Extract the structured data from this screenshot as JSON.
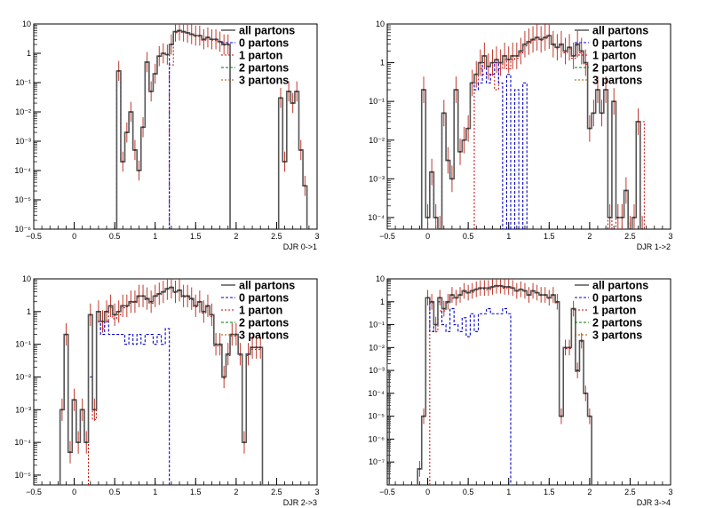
{
  "chart_data": [
    {
      "type": "line",
      "xlabel": "DJR 0->1",
      "ylabel": "",
      "title": "",
      "xlim": [
        -0.5,
        3
      ],
      "ylim_log10": [
        -6,
        1
      ],
      "yscale": "log",
      "x_ticks": [
        "−0.5",
        "0",
        "0.5",
        "1",
        "1.5",
        "2",
        "2.5",
        "3"
      ],
      "y_ticks": [
        "10",
        "1",
        "10⁻¹",
        "10⁻²",
        "10⁻³",
        "10⁻⁴",
        "10⁻⁵",
        "10⁻⁶"
      ],
      "legend": [
        "all partons",
        "0 partons",
        "1 parton",
        "2 partons",
        "3 partons"
      ],
      "bin_width": 0.05,
      "series": [
        {
          "name": "all partons",
          "color": "#555555",
          "x": [
            0.55,
            0.6,
            0.65,
            0.7,
            0.75,
            0.8,
            0.85,
            0.9,
            0.95,
            1.0,
            1.05,
            1.1,
            1.15,
            1.2,
            1.25,
            1.3,
            1.35,
            1.4,
            1.45,
            1.5,
            1.55,
            1.6,
            1.65,
            1.7,
            1.75,
            1.8,
            1.85,
            1.9,
            2.55,
            2.6,
            2.65,
            2.7,
            2.75,
            2.8,
            2.85
          ],
          "values": [
            0.25,
            0.0002,
            0.002,
            0.01,
            0.0005,
            0.0001,
            0.003,
            0.5,
            0.05,
            0.2,
            0.8,
            1.0,
            0.9,
            2.0,
            5.5,
            6.0,
            5.5,
            5.0,
            4.5,
            4.0,
            4.0,
            3.0,
            3.5,
            3.0,
            3.0,
            2.5,
            2.0,
            2.0,
            0.03,
            0.0002,
            0.05,
            0.02,
            0.05,
            0.0005,
            3e-05
          ]
        },
        {
          "name": "0 partons",
          "color": "#0000cc",
          "x": [
            0.55,
            0.6,
            0.65,
            0.7,
            0.75,
            0.8,
            0.85,
            0.9,
            0.95,
            1.0,
            1.05,
            1.1,
            1.15
          ],
          "values": [
            0.25,
            0.0002,
            0.002,
            0.01,
            0.0005,
            0.0001,
            0.003,
            0.5,
            0.05,
            0.2,
            0.8,
            1.0,
            0.9
          ]
        },
        {
          "name": "1 parton",
          "color": "#cc0000",
          "x": [
            1.2,
            1.25,
            1.3,
            1.35,
            1.4,
            1.45,
            1.5,
            1.55,
            1.6,
            1.65,
            1.7,
            1.75,
            1.8,
            1.85,
            1.9,
            2.55,
            2.6,
            2.65,
            2.7,
            2.75,
            2.8,
            2.85
          ],
          "values": [
            0.4,
            5.0,
            5.5,
            5.2,
            4.8,
            4.3,
            3.8,
            3.8,
            2.8,
            3.3,
            2.8,
            2.8,
            2.4,
            1.9,
            1.9,
            0.03,
            0.0002,
            0.05,
            0.02,
            0.05,
            0.0005,
            3e-05
          ]
        },
        {
          "name": "2 partons",
          "color": "#007700",
          "x": [],
          "values": []
        },
        {
          "name": "3 partons",
          "color": "#aa5500",
          "x": [],
          "values": []
        }
      ]
    },
    {
      "type": "line",
      "xlabel": "DJR 1->2",
      "ylabel": "",
      "title": "",
      "xlim": [
        -0.5,
        3
      ],
      "ylim_log10": [
        -4.3,
        1
      ],
      "yscale": "log",
      "x_ticks": [
        "−0.5",
        "0",
        "0.5",
        "1",
        "1.5",
        "2",
        "2.5",
        "3"
      ],
      "y_ticks": [
        "10",
        "1",
        "10⁻¹",
        "10⁻²",
        "10⁻³",
        "10⁻⁴"
      ],
      "legend": [
        "all partons",
        "0 partons",
        "1 parton",
        "2 partons",
        "3 partons"
      ],
      "bin_width": 0.05,
      "series": [
        {
          "name": "all partons",
          "color": "#555555",
          "x": [
            -0.05,
            0.0,
            0.05,
            0.1,
            0.15,
            0.2,
            0.25,
            0.3,
            0.35,
            0.4,
            0.45,
            0.5,
            0.55,
            0.6,
            0.65,
            0.7,
            0.75,
            0.8,
            0.85,
            0.9,
            0.95,
            1.0,
            1.05,
            1.1,
            1.15,
            1.2,
            1.25,
            1.3,
            1.35,
            1.4,
            1.45,
            1.5,
            1.55,
            1.6,
            1.65,
            1.7,
            1.75,
            1.8,
            1.85,
            1.9,
            1.95,
            2.0,
            2.05,
            2.1,
            2.15,
            2.2,
            2.25,
            2.3,
            2.35,
            2.4,
            2.45,
            2.5,
            2.55,
            2.6,
            2.65
          ],
          "values": [
            0.2,
            0.0001,
            0.0015,
            0.0001,
            5e-05,
            0.05,
            0.003,
            0.001,
            0.2,
            0.005,
            0.01,
            0.02,
            0.3,
            0.5,
            1.0,
            1.5,
            0.8,
            1.0,
            1.2,
            1.0,
            1.5,
            1.2,
            1.5,
            1.5,
            2.0,
            3.0,
            3.5,
            4.0,
            4.5,
            4.0,
            4.5,
            5.0,
            3.0,
            2.5,
            3.0,
            2.0,
            2.5,
            1.5,
            3.0,
            2.0,
            1.0,
            0.02,
            0.05,
            0.2,
            0.05,
            0.2,
            0.0001,
            0.1,
            0.0001,
            0.0001,
            0.0005,
            5e-05,
            0.0001,
            0.03,
            5e-05
          ]
        },
        {
          "name": "0 partons",
          "color": "#0000cc",
          "x": [
            -0.05,
            0.0,
            0.05,
            0.1,
            0.15,
            0.2,
            0.25,
            0.3,
            0.35,
            0.4,
            0.45,
            0.5,
            0.55,
            0.6,
            0.65,
            0.7,
            0.75,
            0.8,
            0.85,
            0.9,
            1.0,
            1.1,
            1.2
          ],
          "values": [
            0.2,
            0.0001,
            0.0015,
            0.0001,
            5e-05,
            0.05,
            0.003,
            0.001,
            0.2,
            0.005,
            0.01,
            0.02,
            0.3,
            0.2,
            0.3,
            1.0,
            0.3,
            0.5,
            1.0,
            0.3,
            0.5,
            0.2,
            0.3
          ]
        },
        {
          "name": "1 parton",
          "color": "#cc0000",
          "x": [
            0.6,
            0.65,
            0.7,
            0.75,
            0.8,
            0.85,
            0.9,
            0.95,
            1.0,
            1.05,
            1.1,
            1.15,
            1.2,
            1.25,
            1.3,
            1.35,
            1.4,
            1.45,
            1.5,
            1.55,
            1.6,
            1.65,
            1.7,
            1.75,
            1.8,
            1.85,
            1.9,
            1.95,
            2.0,
            2.05,
            2.1,
            2.15,
            2.2,
            2.3,
            2.65
          ],
          "values": [
            0.3,
            0.7,
            0.5,
            0.5,
            0.5,
            0.2,
            0.7,
            1.2,
            0.7,
            1.2,
            1.3,
            1.8,
            2.7,
            3.2,
            3.8,
            4.3,
            3.8,
            4.3,
            4.8,
            2.8,
            2.3,
            2.8,
            1.8,
            2.3,
            1.3,
            2.8,
            1.8,
            0.9,
            0.02,
            0.05,
            0.2,
            0.05,
            0.2,
            0.1,
            0.03
          ]
        },
        {
          "name": "2 partons",
          "color": "#007700",
          "x": [],
          "values": []
        },
        {
          "name": "3 partons",
          "color": "#aa5500",
          "x": [],
          "values": []
        }
      ]
    },
    {
      "type": "line",
      "xlabel": "DJR 2->3",
      "ylabel": "",
      "title": "",
      "xlim": [
        -0.5,
        3
      ],
      "ylim_log10": [
        -5.3,
        1
      ],
      "yscale": "log",
      "x_ticks": [
        "−0.5",
        "0",
        "0.5",
        "1",
        "1.5",
        "2",
        "2.5",
        "3"
      ],
      "y_ticks": [
        "10",
        "1",
        "10⁻¹",
        "10⁻²",
        "10⁻³",
        "10⁻⁴",
        "10⁻⁵"
      ],
      "legend": [
        "all partons",
        "0 partons",
        "1 parton",
        "2 partons",
        "3 partons"
      ],
      "bin_width": 0.05,
      "series": [
        {
          "name": "all partons",
          "color": "#555555",
          "x": [
            -0.15,
            -0.1,
            -0.05,
            0.0,
            0.05,
            0.1,
            0.15,
            0.2,
            0.25,
            0.3,
            0.35,
            0.4,
            0.45,
            0.5,
            0.55,
            0.6,
            0.65,
            0.7,
            0.75,
            0.8,
            0.85,
            0.9,
            0.95,
            1.0,
            1.05,
            1.1,
            1.15,
            1.2,
            1.25,
            1.3,
            1.35,
            1.4,
            1.45,
            1.5,
            1.55,
            1.6,
            1.65,
            1.7,
            1.75,
            1.8,
            1.85,
            1.9,
            1.95,
            2.0,
            2.05,
            2.1,
            2.15,
            2.2,
            2.25,
            2.3
          ],
          "values": [
            0.001,
            0.2,
            5e-05,
            0.002,
            0.0001,
            0.001,
            0.0001,
            0.8,
            0.001,
            1.0,
            0.5,
            1.0,
            1.5,
            0.8,
            1.0,
            1.5,
            1.5,
            2.0,
            2.0,
            3.0,
            3.0,
            2.5,
            2.0,
            3.0,
            3.5,
            4.0,
            5.0,
            5.5,
            4.0,
            4.5,
            3.0,
            3.0,
            2.5,
            1.5,
            2.0,
            1.0,
            1.5,
            0.8,
            0.1,
            0.1,
            0.01,
            0.05,
            0.2,
            0.2,
            0.05,
            0.0001,
            0.05,
            0.08,
            0.08,
            0.08
          ]
        },
        {
          "name": "0 partons",
          "color": "#0000cc",
          "x": [
            -0.15,
            -0.1,
            -0.05,
            0.0,
            0.05,
            0.1,
            0.15,
            0.2,
            0.25,
            0.3,
            0.35,
            0.4,
            0.45,
            0.5,
            0.55,
            0.6,
            0.65,
            0.7,
            0.75,
            0.8,
            0.85,
            0.9,
            0.95,
            1.0,
            1.05,
            1.1,
            1.15
          ],
          "values": [
            0.001,
            0.2,
            5e-05,
            0.002,
            0.0001,
            0.001,
            0.0001,
            0.01,
            0.001,
            0.5,
            0.2,
            0.5,
            0.2,
            0.2,
            0.2,
            0.2,
            0.1,
            0.2,
            0.1,
            0.2,
            0.1,
            0.2,
            0.2,
            0.1,
            0.2,
            0.1,
            0.3
          ]
        },
        {
          "name": "1 parton",
          "color": "#cc0000",
          "x": [
            0.2,
            0.25,
            0.3,
            0.35,
            0.4,
            0.45,
            0.5,
            0.55,
            0.6,
            0.65,
            0.7,
            0.75,
            0.8,
            0.85,
            0.9,
            0.95,
            1.0,
            1.05,
            1.1,
            1.15,
            1.2,
            1.25,
            1.3,
            1.35,
            1.4,
            1.45,
            1.5,
            1.55,
            1.6,
            1.65,
            1.7,
            1.75,
            1.8,
            1.85,
            1.9,
            1.95,
            2.0,
            2.05,
            2.1,
            2.15,
            2.2,
            2.25,
            2.3
          ],
          "values": [
            0.8,
            0.0005,
            0.5,
            0.3,
            0.5,
            1.3,
            0.6,
            0.8,
            1.3,
            1.4,
            1.8,
            1.9,
            2.8,
            2.9,
            2.3,
            1.8,
            2.9,
            3.3,
            3.9,
            4.7,
            5.3,
            3.8,
            4.3,
            2.8,
            2.8,
            2.3,
            1.4,
            1.9,
            0.9,
            1.4,
            0.7,
            0.09,
            0.09,
            0.009,
            0.045,
            0.18,
            0.18,
            0.045,
            0.0001,
            0.045,
            0.07,
            0.07,
            0.07
          ]
        },
        {
          "name": "2 partons",
          "color": "#007700",
          "x": [],
          "values": []
        },
        {
          "name": "3 partons",
          "color": "#aa5500",
          "x": [],
          "values": []
        }
      ]
    },
    {
      "type": "line",
      "xlabel": "DJR 3->4",
      "ylabel": "",
      "title": "",
      "xlim": [
        -0.5,
        3
      ],
      "ylim_log10": [
        -8,
        1
      ],
      "yscale": "log",
      "x_ticks": [
        "−0.5",
        "0",
        "0.5",
        "1",
        "1.5",
        "2",
        "2.5",
        "3"
      ],
      "y_ticks": [
        "10",
        "1",
        "10⁻¹",
        "10⁻²",
        "10⁻³",
        "10⁻⁴",
        "10⁻⁵",
        "10⁻⁶",
        "10⁻⁷"
      ],
      "legend": [
        "all partons",
        "0 partons",
        "1 parton",
        "2 partons",
        "3 partons"
      ],
      "bin_width": 0.05,
      "series": [
        {
          "name": "all partons",
          "color": "#555555",
          "x": [
            -0.5,
            -0.1,
            -0.05,
            0.0,
            0.05,
            0.1,
            0.15,
            0.2,
            0.25,
            0.3,
            0.35,
            0.4,
            0.45,
            0.5,
            0.55,
            0.6,
            0.65,
            0.7,
            0.75,
            0.8,
            0.85,
            0.9,
            0.95,
            1.0,
            1.05,
            1.1,
            1.15,
            1.2,
            1.25,
            1.3,
            1.35,
            1.4,
            1.45,
            1.5,
            1.55,
            1.6,
            1.65,
            1.7,
            1.75,
            1.8,
            1.85,
            1.9,
            1.95,
            2.0
          ],
          "values": [
            0.001,
            5e-08,
            1e-05,
            1.5,
            1.0,
            0.1,
            1.5,
            0.5,
            1.0,
            2.0,
            1.5,
            2.0,
            3.0,
            2.5,
            3.0,
            3.5,
            4.0,
            4.0,
            4.0,
            4.5,
            5.0,
            5.0,
            4.5,
            4.5,
            4.0,
            3.0,
            3.5,
            3.0,
            2.0,
            3.0,
            2.5,
            2.0,
            2.0,
            1.5,
            2.0,
            1.0,
            1e-05,
            0.01,
            0.01,
            0.5,
            0.001,
            0.02,
            0.0001,
            1e-05
          ]
        },
        {
          "name": "0 partons",
          "color": "#0000cc",
          "x": [
            -0.5,
            -0.1,
            -0.05,
            0.0,
            0.05,
            0.1,
            0.15,
            0.2,
            0.25,
            0.3,
            0.35,
            0.4,
            0.45,
            0.5,
            0.55,
            0.6,
            0.65,
            0.7,
            0.75,
            0.8,
            0.85,
            0.9,
            0.95,
            1.0
          ],
          "values": [
            0.001,
            5e-08,
            1e-05,
            1.5,
            0.05,
            0.1,
            1.0,
            0.1,
            0.05,
            0.5,
            0.1,
            0.05,
            0.2,
            0.03,
            0.3,
            0.05,
            0.3,
            0.3,
            0.5,
            0.3,
            0.3,
            0.3,
            0.5,
            0.3
          ]
        },
        {
          "name": "1 parton",
          "color": "#cc0000",
          "x": [
            0.05,
            0.1,
            0.15,
            0.2,
            0.25,
            0.3,
            0.35,
            0.4,
            0.45,
            0.5,
            0.55,
            0.6,
            0.65,
            0.7,
            0.75,
            0.8,
            0.85,
            0.9,
            0.95,
            1.0,
            1.05,
            1.1,
            1.15,
            1.2,
            1.25,
            1.3,
            1.35,
            1.4,
            1.45,
            1.5,
            1.55,
            1.6,
            1.65,
            1.7,
            1.75,
            1.8,
            1.85,
            1.9,
            1.95,
            2.0
          ],
          "values": [
            0.9,
            0.05,
            0.4,
            0.4,
            0.9,
            1.4,
            1.4,
            1.9,
            2.7,
            2.4,
            2.6,
            3.4,
            3.6,
            3.6,
            3.4,
            4.1,
            4.6,
            4.6,
            3.9,
            4.1,
            3.9,
            2.9,
            3.4,
            2.9,
            1.9,
            2.9,
            2.4,
            1.9,
            1.9,
            1.4,
            1.9,
            0.9,
            1e-05,
            0.009,
            0.009,
            0.45,
            0.0009,
            0.018,
            0.0001,
            1e-05
          ]
        },
        {
          "name": "2 partons",
          "color": "#007700",
          "x": [],
          "values": []
        },
        {
          "name": "3 partons",
          "color": "#aa5500",
          "x": [],
          "values": []
        }
      ]
    }
  ]
}
